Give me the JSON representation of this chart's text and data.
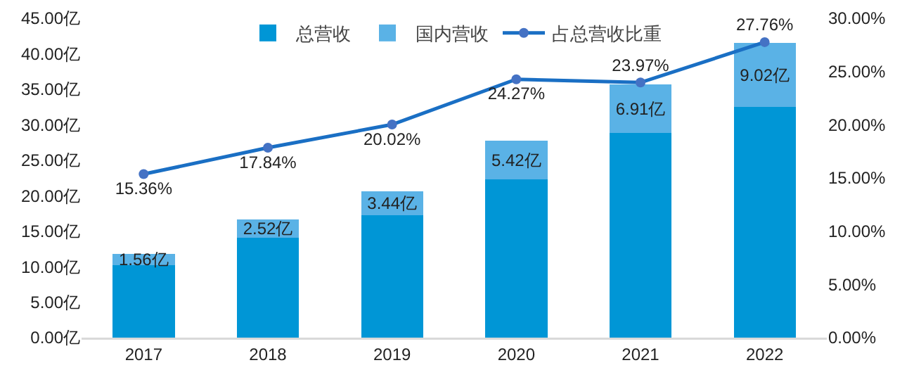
{
  "chart_data": {
    "type": "bar",
    "stacked": true,
    "categories": [
      "2017",
      "2018",
      "2019",
      "2020",
      "2021",
      "2022"
    ],
    "series": [
      {
        "name": "总营收",
        "color": "#0096d6",
        "values": [
          10.2,
          14.1,
          17.2,
          22.3,
          28.8,
          32.5
        ]
      },
      {
        "name": "国内营收",
        "color": "#5ab2e6",
        "values": [
          1.56,
          2.52,
          3.44,
          5.42,
          6.91,
          9.02
        ],
        "value_labels": [
          "1.56亿",
          "2.52亿",
          "3.44亿",
          "5.42亿",
          "6.91亿",
          "9.02亿"
        ]
      },
      {
        "name": "占总营收比重",
        "type": "line",
        "axis": "y2",
        "color": "#1a6fc4",
        "marker": "circle",
        "values": [
          15.36,
          17.84,
          20.02,
          24.27,
          23.97,
          27.76
        ],
        "value_labels": [
          "15.36%",
          "17.84%",
          "20.02%",
          "24.27%",
          "23.97%",
          "27.76%"
        ]
      }
    ],
    "ylim": [
      0,
      45
    ],
    "yticks": [
      {
        "value": 0,
        "label": "0.00亿"
      },
      {
        "value": 5,
        "label": "5.00亿"
      },
      {
        "value": 10,
        "label": "10.00亿"
      },
      {
        "value": 15,
        "label": "15.00亿"
      },
      {
        "value": 20,
        "label": "20.00亿"
      },
      {
        "value": 25,
        "label": "25.00亿"
      },
      {
        "value": 30,
        "label": "30.00亿"
      },
      {
        "value": 35,
        "label": "35.00亿"
      },
      {
        "value": 40,
        "label": "40.00亿"
      },
      {
        "value": 45,
        "label": "45.00亿"
      }
    ],
    "y2lim": [
      0,
      30
    ],
    "y2ticks": [
      {
        "value": 0,
        "label": "0.00%"
      },
      {
        "value": 5,
        "label": "5.00%"
      },
      {
        "value": 10,
        "label": "10.00%"
      },
      {
        "value": 15,
        "label": "15.00%"
      },
      {
        "value": 20,
        "label": "20.00%"
      },
      {
        "value": 25,
        "label": "25.00%"
      },
      {
        "value": 30,
        "label": "30.00%"
      }
    ],
    "grid": false,
    "legend": "top"
  }
}
